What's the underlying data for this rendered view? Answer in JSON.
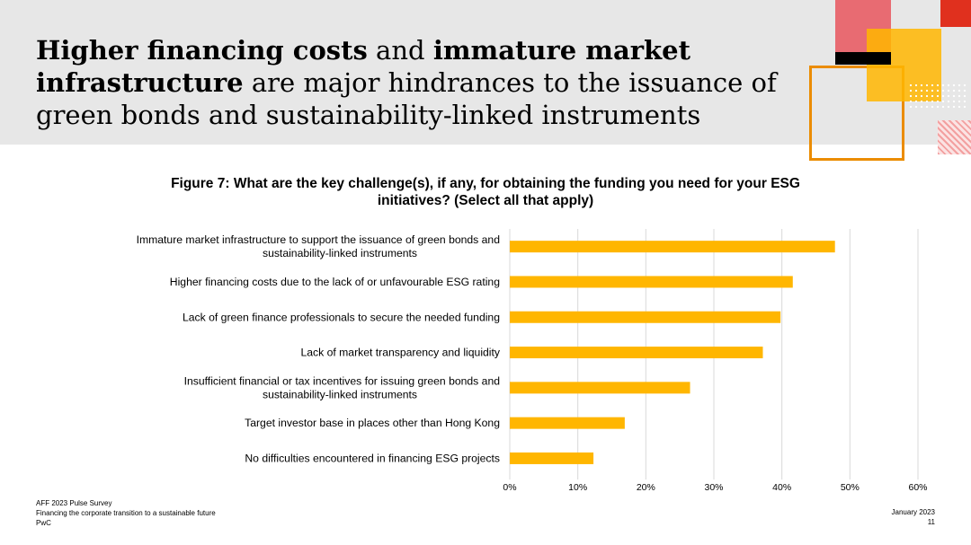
{
  "slide": {
    "title_parts": [
      {
        "text": "Higher financing costs",
        "bold": true
      },
      {
        "text": " and ",
        "bold": false
      },
      {
        "text": "immature market infrastructure",
        "bold": true
      },
      {
        "text": " are major hindrances to the issuance of green bonds and sustainability-linked instruments",
        "bold": false
      }
    ],
    "colors": {
      "bar": "#ffb600",
      "header_band": "#e7e7e7",
      "grid": "#d9d9d9",
      "accent_orange": "#eb8c00",
      "accent_red": "#e0301e",
      "accent_pink": "#e8646b"
    }
  },
  "footer": {
    "line1": "AFF 2023 Pulse Survey",
    "line2": "Financing the corporate transition to a sustainable future",
    "line3": "PwC",
    "date": "January 2023",
    "page": "11"
  },
  "chart_data": {
    "type": "bar",
    "orientation": "horizontal",
    "title": "Figure 7: What are the key challenge(s), if any, for obtaining the funding you need for your ESG initiatives? (Select all that apply)",
    "categories": [
      [
        "Immature market infrastructure to support the issuance of green bonds and",
        "sustainability-linked instruments"
      ],
      [
        "Higher financing costs due to the lack of or unfavourable ESG rating"
      ],
      [
        "Lack of green finance professionals to secure the needed funding"
      ],
      [
        "Lack of market transparency and liquidity"
      ],
      [
        "Insufficient financial or tax incentives for issuing green bonds and",
        "sustainability-linked instruments"
      ],
      [
        "Target investor base in places other than Hong Kong"
      ],
      [
        "No difficulties encountered in financing ESG projects"
      ]
    ],
    "values": [
      47.8,
      41.6,
      39.8,
      37.2,
      26.5,
      16.9,
      12.3
    ],
    "xlim": [
      0,
      60
    ],
    "xticks": [
      "0%",
      "10%",
      "20%",
      "30%",
      "40%",
      "50%",
      "60%"
    ],
    "xtick_values": [
      0,
      10,
      20,
      30,
      40,
      50,
      60
    ],
    "grid": "vertical"
  }
}
